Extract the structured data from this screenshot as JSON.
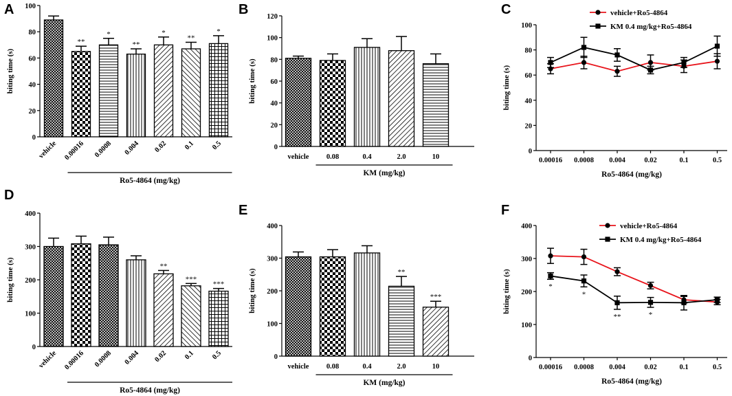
{
  "chart_data": [
    {
      "panel": "A",
      "type": "bar",
      "ylabel": "biting time (s)",
      "ylim": [
        0,
        100
      ],
      "yticks": [
        0,
        20,
        40,
        60,
        80,
        100
      ],
      "categories": [
        "vehicle",
        "0.00016",
        "0.0008",
        "0.004",
        "0.02",
        "0.1",
        "0.5"
      ],
      "values": [
        89,
        65,
        70,
        63,
        70,
        67,
        71
      ],
      "errors": [
        3,
        4,
        5,
        4,
        6,
        5,
        6
      ],
      "significance": [
        "",
        "**",
        "*",
        "**",
        "*",
        "**",
        "*"
      ],
      "patterns": [
        "cross",
        "check",
        "hlines",
        "vlines",
        "diag",
        "back",
        "grid"
      ],
      "group_label": "Ro5-4864 (mg/kg)",
      "group_from": 1,
      "group_to": 6,
      "rotated_labels": true
    },
    {
      "panel": "B",
      "type": "bar",
      "ylabel": "biting time (s)",
      "ylim": [
        0,
        120
      ],
      "yticks": [
        0,
        20,
        40,
        60,
        80,
        100,
        120
      ],
      "categories": [
        "vehicle",
        "0.08",
        "0.4",
        "2.0",
        "10"
      ],
      "values": [
        81,
        79,
        91,
        88,
        76
      ],
      "errors": [
        2,
        6,
        8,
        13,
        9
      ],
      "significance": [
        "",
        "",
        "",
        "",
        ""
      ],
      "patterns": [
        "cross",
        "check",
        "vlines",
        "diag",
        "hlines"
      ],
      "group_label": "KM (mg/kg)",
      "group_from": 1,
      "group_to": 4,
      "rotated_labels": false
    },
    {
      "panel": "C",
      "type": "line",
      "ylabel": "biting time (s)",
      "xlabel": "Ro5-4864 (mg/kg)",
      "ylim": [
        0,
        100
      ],
      "yticks": [
        0,
        20,
        40,
        60,
        80,
        100
      ],
      "categories": [
        "0.00016",
        "0.0008",
        "0.004",
        "0.02",
        "0.1",
        "0.5"
      ],
      "series": [
        {
          "name": "vehicle+Ro5-4864",
          "color": "#e8141b",
          "marker": "circle",
          "values": [
            65,
            70,
            63,
            70,
            67,
            71
          ],
          "errors": [
            4,
            5,
            4,
            6,
            5,
            6
          ]
        },
        {
          "name": "KM 0.4 mg/kg+Ro5-4864",
          "color": "#000000",
          "marker": "square",
          "values": [
            70,
            82,
            76,
            64,
            70,
            83
          ],
          "errors": [
            4,
            8,
            5,
            3,
            4,
            8
          ]
        }
      ],
      "significance": []
    },
    {
      "panel": "D",
      "type": "bar",
      "ylabel": "biting time (s)",
      "ylim": [
        0,
        400
      ],
      "yticks": [
        0,
        100,
        200,
        300,
        400
      ],
      "categories": [
        "vehicle",
        "0.00016",
        "0.0008",
        "0.004",
        "0.02",
        "0.1",
        "0.5"
      ],
      "values": [
        300,
        308,
        305,
        260,
        218,
        182,
        166
      ],
      "errors": [
        25,
        23,
        23,
        12,
        10,
        7,
        8
      ],
      "significance": [
        "",
        "",
        "",
        "",
        "**",
        "***",
        "***"
      ],
      "patterns": [
        "cross",
        "check",
        "cross",
        "vlines",
        "diag",
        "back",
        "grid"
      ],
      "group_label": "Ro5-4864 (mg/kg)",
      "group_from": 1,
      "group_to": 6,
      "rotated_labels": true
    },
    {
      "panel": "E",
      "type": "bar",
      "ylabel": "biting time (s)",
      "ylim": [
        0,
        400
      ],
      "yticks": [
        0,
        100,
        200,
        300,
        400
      ],
      "categories": [
        "vehicle",
        "0.08",
        "0.4",
        "2.0",
        "10"
      ],
      "values": [
        304,
        304,
        316,
        214,
        150
      ],
      "errors": [
        15,
        22,
        22,
        30,
        18
      ],
      "significance": [
        "",
        "",
        "",
        "**",
        "***"
      ],
      "patterns": [
        "cross",
        "check",
        "vlines",
        "hlines",
        "diag"
      ],
      "group_label": "KM (mg/kg)",
      "group_from": 1,
      "group_to": 4,
      "rotated_labels": false
    },
    {
      "panel": "F",
      "type": "line",
      "ylabel": "biting time (s)",
      "xlabel": "Ro5-4864 (mg/kg)",
      "ylim": [
        0,
        400
      ],
      "yticks": [
        0,
        100,
        200,
        300,
        400
      ],
      "categories": [
        "0.00016",
        "0.0008",
        "0.004",
        "0.02",
        "0.1",
        "0.5"
      ],
      "series": [
        {
          "name": "vehicle+Ro5-4864",
          "color": "#e8141b",
          "marker": "circle",
          "values": [
            308,
            305,
            260,
            218,
            175,
            168
          ],
          "errors": [
            23,
            23,
            12,
            10,
            10,
            8
          ]
        },
        {
          "name": "KM 0.4 mg/kg+Ro5-4864",
          "color": "#000000",
          "marker": "square",
          "values": [
            247,
            232,
            166,
            167,
            166,
            175
          ],
          "errors": [
            10,
            18,
            20,
            15,
            22,
            8
          ]
        }
      ],
      "significance": [
        "*",
        "*",
        "**",
        "*",
        "",
        ""
      ]
    }
  ]
}
